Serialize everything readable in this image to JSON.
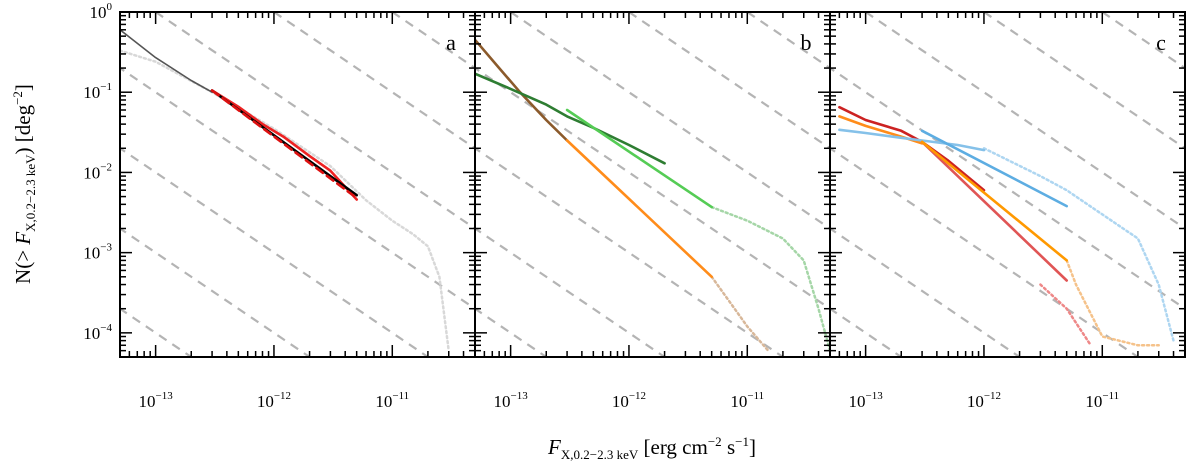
{
  "figure": {
    "ylabel_parts": {
      "pre": "N(> ",
      "F": "F",
      "sub": "X,0.2−2.3 keV",
      "post": ") [deg",
      "sup": "−2",
      "close": "]"
    },
    "xlabel_parts": {
      "F": "F",
      "sub": "X,0.2−2.3 keV",
      "pre_unit": " [erg cm",
      "sup1": "−2",
      "mid": " s",
      "sup2": "−1",
      "close": "]"
    }
  },
  "chart_data": [
    {
      "type": "line",
      "panel": "a",
      "xscale": "log",
      "yscale": "log",
      "xlim": [
        5e-14,
        5e-11
      ],
      "ylim": [
        5e-05,
        1
      ],
      "xticks": [
        {
          "v": 1e-13,
          "base": "10",
          "exp": "−13"
        },
        {
          "v": 1e-12,
          "base": "10",
          "exp": "−12"
        },
        {
          "v": 1e-11,
          "base": "10",
          "exp": "−11"
        }
      ],
      "yticks": [
        {
          "v": 1,
          "base": "10",
          "exp": "0"
        },
        {
          "v": 0.1,
          "base": "10",
          "exp": "−1"
        },
        {
          "v": 0.01,
          "base": "10",
          "exp": "−2"
        },
        {
          "v": 0.001,
          "base": "10",
          "exp": "−3"
        },
        {
          "v": 0.0001,
          "base": "10",
          "exp": "−4"
        }
      ],
      "grid": false,
      "reference_lines": "diagonal dashed grey slope −1 guides",
      "series": [
        {
          "color": "#555555",
          "style": "solid",
          "x": [
            5e-14,
            1e-13,
            2e-13,
            3e-13
          ],
          "y": [
            0.6,
            0.27,
            0.14,
            0.1
          ]
        },
        {
          "color": "#d8d8d8",
          "style": "dotted",
          "x": [
            5e-14,
            1e-13,
            3e-13,
            1e-12,
            3e-12,
            6e-12,
            1e-11,
            1.5e-11,
            2e-11,
            2.5e-11,
            3e-11
          ],
          "y": [
            0.33,
            0.24,
            0.1,
            0.035,
            0.012,
            0.0045,
            0.0025,
            0.0017,
            0.0012,
            0.0005,
            6e-05
          ]
        },
        {
          "color": "#ee2222",
          "style": "solid",
          "x": [
            3e-13,
            5e-13,
            8e-13,
            1.2e-12,
            2e-12,
            3e-12,
            5e-12
          ],
          "y": [
            0.105,
            0.066,
            0.04,
            0.028,
            0.016,
            0.0105,
            0.0046
          ]
        },
        {
          "color": "#000000",
          "style": "solid",
          "x": [
            3e-13,
            5e-12
          ],
          "y": [
            0.105,
            0.0052
          ]
        },
        {
          "color": "#dd1111",
          "style": "dashed",
          "x": [
            3e-13,
            5e-12
          ],
          "y": [
            0.105,
            0.0048
          ]
        }
      ]
    },
    {
      "type": "line",
      "panel": "b",
      "xscale": "log",
      "yscale": "log",
      "xlim": [
        5e-14,
        5e-11
      ],
      "ylim": [
        5e-05,
        1
      ],
      "xticks": [
        {
          "v": 1e-13,
          "base": "10",
          "exp": "−13"
        },
        {
          "v": 1e-12,
          "base": "10",
          "exp": "−12"
        },
        {
          "v": 1e-11,
          "base": "10",
          "exp": "−11"
        }
      ],
      "grid": false,
      "series": [
        {
          "color": "#8b5a2b",
          "style": "solid",
          "x": [
            5e-14,
            8e-14,
            1.2e-13,
            2e-13,
            3e-13
          ],
          "y": [
            0.45,
            0.2,
            0.1,
            0.045,
            0.025
          ]
        },
        {
          "color": "#2e7d32",
          "style": "solid",
          "x": [
            5e-14,
            1e-13,
            2e-13,
            3e-13,
            5e-13,
            1e-12,
            2e-12
          ],
          "y": [
            0.17,
            0.11,
            0.07,
            0.05,
            0.036,
            0.022,
            0.013
          ]
        },
        {
          "color": "#ff8c1a",
          "style": "solid",
          "x": [
            3e-13,
            5e-12
          ],
          "y": [
            0.025,
            0.0005
          ]
        },
        {
          "color": "#55cc55",
          "style": "solid",
          "x": [
            3e-13,
            5e-12
          ],
          "y": [
            0.06,
            0.0037
          ]
        },
        {
          "color": "#d8b89a",
          "style": "dotted",
          "x": [
            5e-12,
            7e-12,
            1e-11,
            1.5e-11
          ],
          "y": [
            0.0005,
            0.00025,
            0.00012,
            6e-05
          ]
        },
        {
          "color": "#a5d6a7",
          "style": "dotted",
          "x": [
            5e-12,
            1e-11,
            2e-11,
            3e-11,
            4e-11,
            5e-11
          ],
          "y": [
            0.0037,
            0.0025,
            0.0015,
            0.0008,
            0.0002,
            6e-05
          ]
        }
      ]
    },
    {
      "type": "line",
      "panel": "c",
      "xscale": "log",
      "yscale": "log",
      "xlim": [
        5e-14,
        5e-11
      ],
      "ylim": [
        5e-05,
        1
      ],
      "xticks": [
        {
          "v": 1e-13,
          "base": "10",
          "exp": "−13"
        },
        {
          "v": 1e-12,
          "base": "10",
          "exp": "−12"
        },
        {
          "v": 1e-11,
          "base": "10",
          "exp": "−11"
        }
      ],
      "grid": false,
      "series": [
        {
          "color": "#cc2222",
          "style": "solid",
          "x": [
            6e-14,
            1e-13,
            2e-13,
            3e-13,
            5e-13,
            1e-12
          ],
          "y": [
            0.065,
            0.045,
            0.033,
            0.024,
            0.014,
            0.006
          ]
        },
        {
          "color": "#ff8c1a",
          "style": "solid",
          "x": [
            6e-14,
            1e-13,
            2e-13,
            3e-13
          ],
          "y": [
            0.05,
            0.038,
            0.028,
            0.023
          ]
        },
        {
          "color": "#85c1e9",
          "style": "solid",
          "x": [
            6e-14,
            1e-13,
            2e-13,
            3e-13,
            6e-13,
            1e-12
          ],
          "y": [
            0.034,
            0.031,
            0.027,
            0.025,
            0.022,
            0.019
          ]
        },
        {
          "color": "#e05555",
          "style": "solid",
          "x": [
            3e-13,
            5e-12
          ],
          "y": [
            0.024,
            0.00045
          ]
        },
        {
          "color": "#ff9900",
          "style": "solid",
          "x": [
            3e-13,
            5e-12
          ],
          "y": [
            0.024,
            0.0008
          ]
        },
        {
          "color": "#5dade2",
          "style": "solid",
          "x": [
            3e-13,
            5e-12
          ],
          "y": [
            0.033,
            0.0038
          ]
        },
        {
          "color": "#f5c28a",
          "style": "dotted",
          "x": [
            5e-12,
            6e-12,
            1e-11,
            2e-11,
            3e-11
          ],
          "y": [
            0.0008,
            0.0004,
            9e-05,
            7e-05,
            7e-05
          ]
        },
        {
          "color": "#ee8888",
          "style": "dotted",
          "x": [
            3e-12,
            5e-12,
            8e-12
          ],
          "y": [
            0.0004,
            0.0002,
            7e-05
          ]
        },
        {
          "color": "#aed6f1",
          "style": "dotted",
          "x": [
            1e-12,
            3e-12,
            5e-12,
            1e-11,
            2e-11,
            3e-11,
            4e-11
          ],
          "y": [
            0.02,
            0.009,
            0.006,
            0.003,
            0.0015,
            0.0004,
            8e-05
          ]
        }
      ]
    }
  ]
}
